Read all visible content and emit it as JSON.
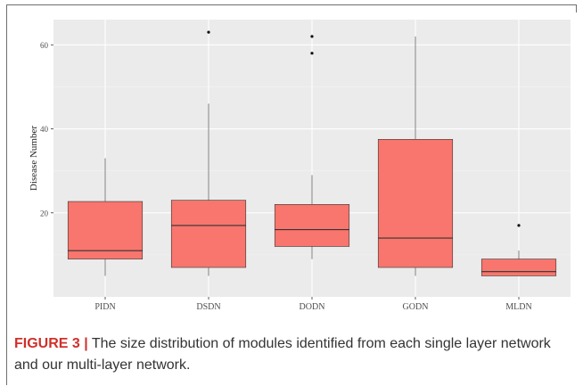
{
  "chart_data": {
    "type": "box",
    "ylabel": "Disease Number",
    "xlabel": "",
    "ylim": [
      0,
      66
    ],
    "yticks": [
      20,
      40,
      60
    ],
    "grid": true,
    "categories": [
      "PIDN",
      "DSDN",
      "DODN",
      "GODN",
      "MLDN"
    ],
    "boxes": [
      {
        "name": "PIDN",
        "min": 5,
        "q1": 9,
        "median": 11,
        "q3": 22.7,
        "max": 33,
        "outliers": []
      },
      {
        "name": "DSDN",
        "min": 5,
        "q1": 7,
        "median": 17,
        "q3": 23,
        "max": 46,
        "outliers": [
          63
        ]
      },
      {
        "name": "DODN",
        "min": 9,
        "q1": 12,
        "median": 16,
        "q3": 22,
        "max": 29,
        "outliers": [
          58,
          62
        ]
      },
      {
        "name": "GODN",
        "min": 5,
        "q1": 7,
        "median": 14,
        "q3": 37.5,
        "max": 62,
        "outliers": []
      },
      {
        "name": "MLDN",
        "min": 5,
        "q1": 5,
        "median": 6,
        "q3": 9,
        "max": 11,
        "outliers": [
          17
        ]
      }
    ],
    "box_color": "#f8766d",
    "panel_color": "#ebebeb"
  },
  "caption": {
    "label": "FIGURE 3 |",
    "text": " The size distribution of modules identified from each single layer network and our multi-layer network."
  }
}
